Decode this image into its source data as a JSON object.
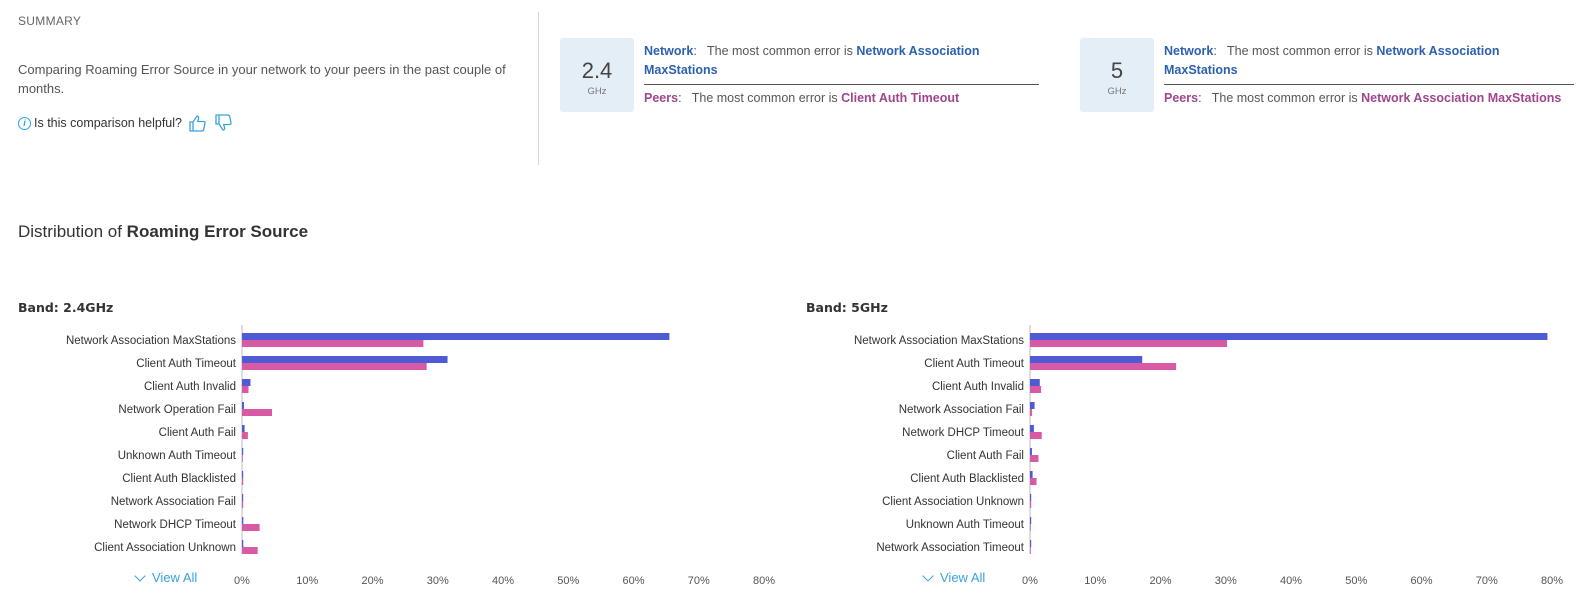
{
  "summary": {
    "title": "SUMMARY",
    "description": "Comparing Roaming Error Source in your network to your peers in the past couple of months.",
    "helpful_question": "Is this comparison helpful?"
  },
  "bands": [
    {
      "value": "2.4",
      "unit": "GHz",
      "network_label": "Network",
      "network_text": "The most common error is",
      "network_error": "Network Association MaxStations",
      "peers_label": "Peers",
      "peers_text": "The most common error is",
      "peers_error": "Client Auth Timeout"
    },
    {
      "value": "5",
      "unit": "GHz",
      "network_label": "Network",
      "network_text": "The most common error is",
      "network_error": "Network Association MaxStations",
      "peers_label": "Peers",
      "peers_text": "The most common error is",
      "peers_error": "Network Association MaxStations"
    }
  ],
  "distribution": {
    "title_prefix": "Distribution of",
    "title_bold": "Roaming Error Source"
  },
  "view_all_label": "View All",
  "colors": {
    "network": "#4e5bd4",
    "peers": "#d85aa4"
  },
  "chart_data": [
    {
      "type": "bar",
      "orientation": "horizontal",
      "title": "Band: 2.4GHz",
      "categories": [
        "Network Association MaxStations",
        "Client Auth Timeout",
        "Client Auth Invalid",
        "Network Operation Fail",
        "Client Auth Fail",
        "Unknown Auth Timeout",
        "Client Auth Blacklisted",
        "Network Association Fail",
        "Network DHCP Timeout",
        "Client Association Unknown"
      ],
      "series": [
        {
          "values": [
            65.5,
            31.5,
            1.3,
            0.3,
            0.4,
            0.1,
            0.1,
            0.1,
            0.2,
            0.2
          ]
        },
        {
          "values": [
            27.8,
            28.3,
            1.0,
            4.6,
            0.9,
            0.0,
            0.1,
            0.1,
            2.7,
            2.4
          ]
        }
      ],
      "xlim": [
        0,
        80
      ],
      "xticks": [
        "0%",
        "10%",
        "20%",
        "30%",
        "40%",
        "50%",
        "60%",
        "70%",
        "80%"
      ]
    },
    {
      "type": "bar",
      "orientation": "horizontal",
      "title": "Band: 5GHz",
      "categories": [
        "Network Association MaxStations",
        "Client Auth Timeout",
        "Client Auth Invalid",
        "Network Association Fail",
        "Network DHCP Timeout",
        "Client Auth Fail",
        "Client Auth Blacklisted",
        "Client Association Unknown",
        "Unknown Auth Timeout",
        "Network Association Timeout"
      ],
      "series": [
        {
          "values": [
            79.3,
            17.2,
            1.5,
            0.7,
            0.6,
            0.3,
            0.4,
            0.1,
            0.1,
            0.1
          ]
        },
        {
          "values": [
            30.2,
            22.4,
            1.7,
            0.3,
            1.8,
            1.3,
            1.0,
            0.1,
            0.0,
            0.0
          ]
        }
      ],
      "xlim": [
        0,
        80
      ],
      "xticks": [
        "0%",
        "10%",
        "20%",
        "30%",
        "40%",
        "50%",
        "60%",
        "70%",
        "80%"
      ]
    }
  ]
}
